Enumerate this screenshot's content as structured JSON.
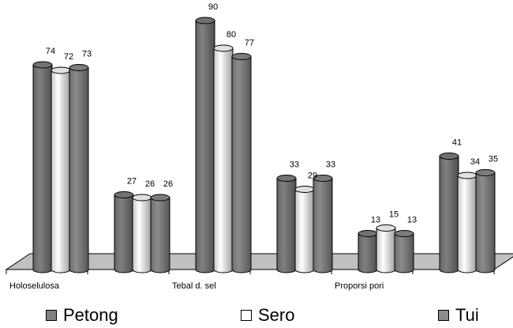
{
  "chart_data": {
    "type": "bar",
    "categories": [
      "Holoselulosa",
      "",
      "Tebal d. sel",
      "",
      "Proporsi pori",
      ""
    ],
    "series": [
      {
        "name": "Petong",
        "values": [
          74,
          27,
          90,
          33,
          13,
          41
        ],
        "labels": [
          "74",
          "27",
          "90",
          "33",
          "13",
          "41"
        ],
        "color": "#808080"
      },
      {
        "name": "Sero",
        "values": [
          72,
          26,
          80,
          29,
          15,
          34
        ],
        "labels": [
          "72",
          "26",
          "80",
          "29",
          "15",
          "34"
        ],
        "color": "#ffffff"
      },
      {
        "name": "Tui",
        "values": [
          73,
          26,
          77,
          33,
          13,
          35
        ],
        "labels": [
          "73",
          "26",
          "77",
          "33",
          "13",
          "35"
        ],
        "color": "#8c8c8c"
      }
    ],
    "ylim": [
      0,
      90
    ],
    "legend_position": "bottom",
    "grid": false
  }
}
